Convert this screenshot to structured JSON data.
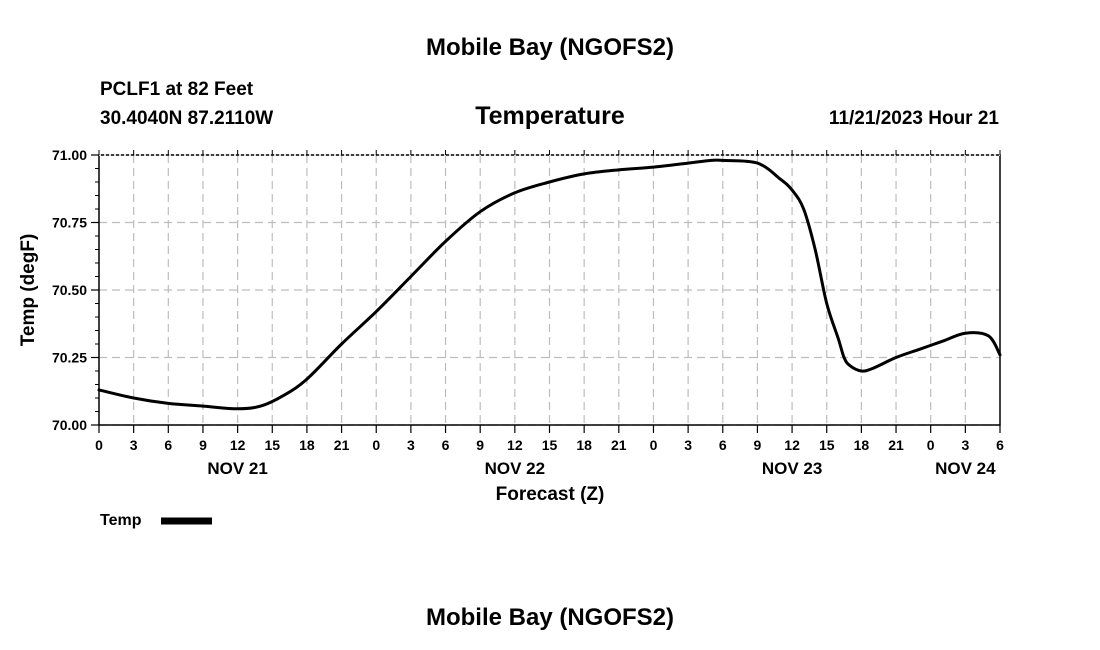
{
  "header": {
    "title": "Mobile Bay (NGOFS2)",
    "station": "PCLF1 at 82 Feet",
    "coords": "30.4040N  87.2110W",
    "variable": "Temperature",
    "datetime": "11/21/2023 Hour 21"
  },
  "footer": {
    "title": "Mobile Bay (NGOFS2)"
  },
  "chart_data": {
    "type": "line",
    "title": "Temperature",
    "xlabel": "Forecast (Z)",
    "ylabel": "Temp (degF)",
    "x_unit": "hours from 2023-11-21 00Z",
    "xlim": [
      0,
      78
    ],
    "ylim": [
      70.0,
      71.0
    ],
    "yticks": [
      "70.00",
      "70.25",
      "70.50",
      "70.75",
      "71.00"
    ],
    "xtick_labels": [
      "0",
      "3",
      "6",
      "9",
      "12",
      "15",
      "18",
      "21",
      "0",
      "3",
      "6",
      "9",
      "12",
      "15",
      "18",
      "21",
      "0",
      "3",
      "6",
      "9",
      "12",
      "15",
      "18",
      "21",
      "0",
      "3",
      "6"
    ],
    "date_labels": [
      {
        "label": "NOV 21",
        "hour": 12
      },
      {
        "label": "NOV 22",
        "hour": 36
      },
      {
        "label": "NOV 23",
        "hour": 60
      },
      {
        "label": "NOV 24",
        "hour": 75
      }
    ],
    "grid": true,
    "legend": {
      "position": "bottom-left"
    },
    "series": [
      {
        "name": "Temp",
        "color": "#000000",
        "x": [
          0,
          3,
          6,
          9,
          12,
          14,
          16,
          18,
          21,
          24,
          27,
          30,
          33,
          36,
          39,
          42,
          45,
          48,
          51,
          53,
          54,
          57,
          59,
          60,
          61,
          62,
          63,
          64,
          64.5,
          65,
          66,
          67,
          69,
          71,
          73,
          75,
          77,
          78
        ],
        "y": [
          70.13,
          70.1,
          70.08,
          70.07,
          70.06,
          70.07,
          70.11,
          70.17,
          70.3,
          70.42,
          70.55,
          70.68,
          70.79,
          70.86,
          70.9,
          70.93,
          70.945,
          70.955,
          70.97,
          70.98,
          70.98,
          70.97,
          70.91,
          70.87,
          70.8,
          70.65,
          70.45,
          70.32,
          70.25,
          70.22,
          70.2,
          70.21,
          70.25,
          70.28,
          70.31,
          70.34,
          70.33,
          70.26
        ]
      }
    ]
  }
}
